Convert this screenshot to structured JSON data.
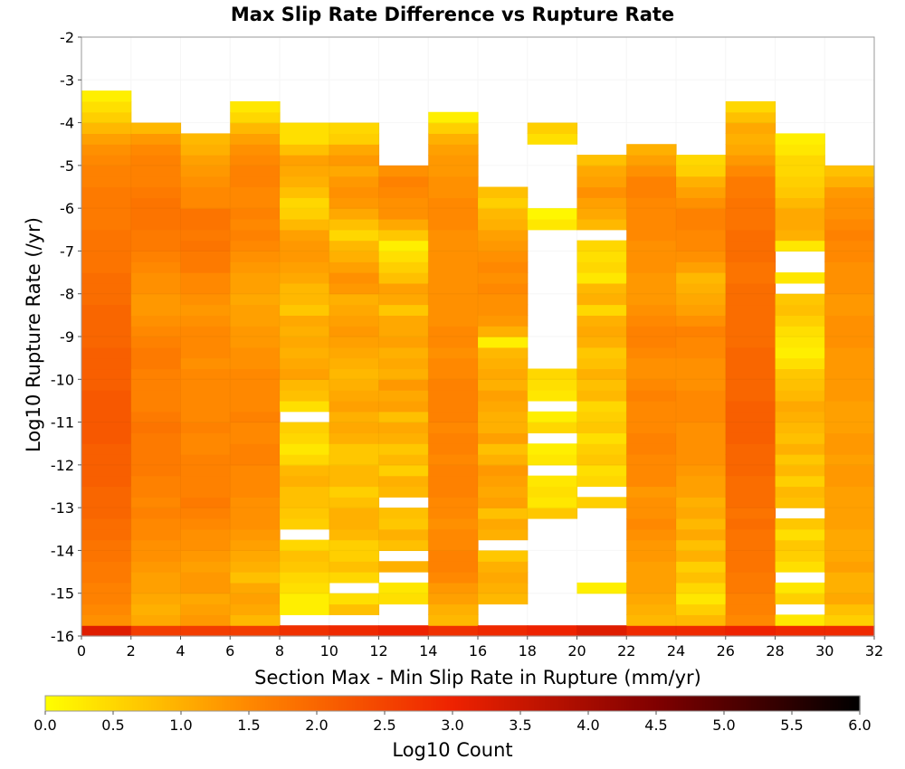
{
  "chart_data": {
    "type": "heatmap",
    "title": "Max Slip Rate Difference vs Rupture Rate",
    "xlabel": "Section Max - Min Slip Rate in Rupture (mm/yr)",
    "ylabel": "Log10 Rupture Rate (/yr)",
    "xlim": [
      0,
      32
    ],
    "ylim": [
      -16,
      -2
    ],
    "x_ticks": [
      "0",
      "2",
      "4",
      "6",
      "8",
      "10",
      "12",
      "14",
      "16",
      "18",
      "20",
      "22",
      "24",
      "26",
      "28",
      "30",
      "32"
    ],
    "y_ticks": [
      "-2",
      "-3",
      "-4",
      "-5",
      "-6",
      "-7",
      "-8",
      "-9",
      "-10",
      "-11",
      "-12",
      "-13",
      "-14",
      "-15",
      "-16"
    ],
    "x_bin_width": 2,
    "y_bin_width": 0.25,
    "colorbar": {
      "label": "Log10 Count",
      "range": [
        0,
        6
      ],
      "ticks": [
        "0.0",
        "0.5",
        "1.0",
        "1.5",
        "2.0",
        "2.5",
        "3.0",
        "3.5",
        "4.0",
        "4.5",
        "5.0",
        "5.5",
        "6.0"
      ],
      "colors": [
        "#ffff00",
        "#ff8800",
        "#ee2200",
        "#800000",
        "#000000"
      ]
    },
    "bin_value_note": "Each column lists Log10 Count per 0.25 Log10 rate bin, from the bin starting at -16 upward; null = empty bin",
    "columns": [
      {
        "x": 1,
        "values": [
          3.2,
          1.4,
          1.5,
          1.6,
          1.6,
          1.7,
          1.7,
          1.8,
          1.8,
          1.9,
          1.9,
          2.0,
          2.0,
          2.0,
          2.1,
          2.1,
          2.1,
          2.1,
          2.2,
          2.2,
          2.2,
          2.2,
          2.2,
          2.1,
          2.1,
          2.1,
          2.1,
          2.0,
          2.0,
          2.0,
          2.0,
          1.9,
          1.9,
          1.9,
          1.8,
          1.8,
          1.8,
          1.8,
          1.7,
          1.7,
          1.7,
          1.7,
          1.6,
          1.6,
          1.5,
          1.4,
          1.2,
          0.9,
          0.6,
          0.4,
          0.2
        ]
      },
      {
        "x": 3,
        "values": [
          2.6,
          1.1,
          1.0,
          1.1,
          1.2,
          1.2,
          1.3,
          1.4,
          1.4,
          1.5,
          1.5,
          1.6,
          1.5,
          1.6,
          1.6,
          1.7,
          1.7,
          1.7,
          1.7,
          1.8,
          1.7,
          1.6,
          1.6,
          1.6,
          1.6,
          1.7,
          1.7,
          1.6,
          1.5,
          1.4,
          1.3,
          1.3,
          1.4,
          1.4,
          1.5,
          1.6,
          1.7,
          1.7,
          1.8,
          1.8,
          1.8,
          1.7,
          1.6,
          1.6,
          1.6,
          1.5,
          1.3,
          0.9
        ]
      },
      {
        "x": 5,
        "values": [
          2.6,
          1.3,
          1.2,
          1.1,
          1.3,
          1.3,
          1.2,
          1.3,
          1.4,
          1.4,
          1.5,
          1.6,
          1.7,
          1.6,
          1.6,
          1.6,
          1.6,
          1.5,
          1.5,
          1.6,
          1.5,
          1.5,
          1.5,
          1.5,
          1.5,
          1.4,
          1.5,
          1.5,
          1.5,
          1.4,
          1.3,
          1.4,
          1.5,
          1.5,
          1.7,
          1.7,
          1.8,
          1.7,
          1.8,
          1.8,
          1.5,
          1.5,
          1.4,
          1.3,
          1.2,
          1.0,
          0.9
        ]
      },
      {
        "x": 7,
        "values": [
          2.6,
          0.9,
          1.1,
          1.2,
          1.1,
          0.8,
          1.0,
          1.1,
          1.2,
          1.3,
          1.4,
          1.4,
          1.4,
          1.5,
          1.5,
          1.5,
          1.6,
          1.6,
          1.5,
          1.5,
          1.6,
          1.5,
          1.5,
          1.5,
          1.5,
          1.4,
          1.4,
          1.3,
          1.3,
          1.2,
          1.2,
          1.1,
          1.2,
          1.2,
          1.3,
          1.4,
          1.5,
          1.6,
          1.5,
          1.6,
          1.5,
          1.5,
          1.6,
          1.6,
          1.5,
          1.4,
          1.2,
          0.9,
          0.5,
          0.3
        ]
      },
      {
        "x": 9,
        "values": [
          2.8,
          null,
          0.2,
          0.2,
          0.4,
          0.5,
          0.7,
          0.8,
          0.5,
          null,
          0.6,
          0.7,
          0.8,
          0.8,
          1.0,
          0.9,
          0.5,
          0.3,
          0.5,
          0.6,
          null,
          0.4,
          0.8,
          0.9,
          1.2,
          1.1,
          1.0,
          1.1,
          1.0,
          1.1,
          0.7,
          0.9,
          0.9,
          1.1,
          1.2,
          1.3,
          1.3,
          1.2,
          0.9,
          0.6,
          0.5,
          0.8,
          1.0,
          1.1,
          1.2,
          0.8,
          0.4,
          0.4
        ]
      },
      {
        "x": 11,
        "values": [
          2.9,
          null,
          0.8,
          0.4,
          null,
          0.5,
          0.8,
          0.6,
          0.6,
          0.9,
          1.0,
          1.0,
          0.8,
          0.6,
          0.9,
          0.9,
          0.7,
          0.7,
          1.0,
          1.1,
          1.0,
          1.2,
          1.1,
          1.0,
          0.9,
          1.0,
          1.1,
          1.2,
          1.3,
          1.2,
          1.1,
          1.0,
          1.3,
          1.4,
          1.2,
          1.0,
          0.9,
          0.5,
          0.8,
          1.1,
          1.3,
          1.4,
          1.3,
          1.1,
          1.3,
          1.1,
          0.6,
          0.5
        ]
      },
      {
        "x": 13,
        "values": [
          3.0,
          null,
          null,
          0.4,
          0.3,
          null,
          1.0,
          null,
          0.8,
          1.0,
          0.7,
          0.8,
          null,
          0.9,
          1.0,
          0.6,
          0.9,
          0.7,
          1.0,
          1.1,
          0.8,
          1.2,
          1.1,
          1.3,
          1.0,
          1.1,
          1.0,
          1.2,
          1.1,
          1.1,
          0.7,
          1.1,
          1.2,
          0.8,
          0.6,
          0.4,
          0.2,
          0.7,
          1.1,
          1.4,
          1.4,
          1.5,
          1.6,
          1.4
        ]
      },
      {
        "x": 15,
        "values": [
          2.8,
          0.9,
          1.0,
          1.2,
          1.3,
          1.5,
          1.6,
          1.6,
          1.5,
          1.5,
          1.4,
          1.5,
          1.5,
          1.6,
          1.6,
          1.6,
          1.5,
          1.6,
          1.6,
          1.5,
          1.6,
          1.6,
          1.6,
          1.6,
          1.5,
          1.5,
          1.4,
          1.5,
          1.5,
          1.4,
          1.4,
          1.4,
          1.4,
          1.4,
          1.4,
          1.4,
          1.4,
          1.4,
          1.5,
          1.5,
          1.5,
          1.4,
          1.4,
          1.3,
          1.3,
          1.2,
          1.0,
          0.6,
          0.2
        ]
      },
      {
        "x": 17,
        "values": [
          2.9,
          null,
          null,
          0.9,
          1.0,
          1.1,
          1.0,
          0.7,
          null,
          1.0,
          1.1,
          0.8,
          1.2,
          1.1,
          1.2,
          1.3,
          1.0,
          0.8,
          1.2,
          1.0,
          1.0,
          1.1,
          1.2,
          1.0,
          1.1,
          1.0,
          0.9,
          0.2,
          1.0,
          1.3,
          1.4,
          1.4,
          1.5,
          1.4,
          1.5,
          1.4,
          1.3,
          1.2,
          1.0,
          0.9,
          0.6,
          0.8
        ]
      },
      {
        "x": 19,
        "values": [
          3.0,
          null,
          null,
          null,
          null,
          null,
          null,
          null,
          null,
          null,
          null,
          0.7,
          0.3,
          0.4,
          0.3,
          null,
          0.3,
          0.2,
          null,
          0.5,
          0.2,
          null,
          0.3,
          0.4,
          0.5,
          null,
          null,
          null,
          null,
          null,
          null,
          null,
          null,
          null,
          null,
          null,
          null,
          null,
          0.3,
          0.1,
          null,
          null,
          null,
          null,
          null,
          null,
          0.4,
          0.6
        ]
      },
      {
        "x": 21,
        "values": [
          3.2,
          null,
          null,
          null,
          0.2,
          null,
          null,
          null,
          null,
          null,
          null,
          null,
          0.6,
          null,
          0.5,
          0.4,
          0.7,
          0.6,
          0.4,
          0.7,
          0.6,
          0.5,
          0.9,
          0.8,
          1.0,
          0.8,
          0.7,
          1.0,
          1.1,
          1.0,
          0.5,
          1.0,
          0.9,
          0.3,
          0.5,
          0.4,
          0.5,
          null,
          0.9,
          1.1,
          1.2,
          1.4,
          1.2,
          1.1,
          0.8
        ]
      },
      {
        "x": 23,
        "values": [
          2.9,
          0.9,
          1.0,
          1.1,
          1.2,
          1.2,
          1.2,
          1.3,
          1.3,
          1.4,
          1.5,
          1.4,
          1.4,
          1.3,
          1.5,
          1.5,
          1.5,
          1.6,
          1.6,
          1.5,
          1.5,
          1.5,
          1.6,
          1.5,
          1.4,
          1.4,
          1.5,
          1.6,
          1.6,
          1.5,
          1.4,
          1.3,
          1.3,
          1.3,
          1.4,
          1.4,
          1.4,
          1.5,
          1.5,
          1.5,
          1.5,
          1.6,
          1.6,
          1.4,
          1.2,
          1.0
        ]
      },
      {
        "x": 25,
        "values": [
          2.9,
          0.9,
          0.6,
          0.3,
          0.5,
          0.8,
          0.6,
          1.0,
          0.8,
          1.1,
          0.9,
          1.1,
          1.0,
          1.2,
          1.2,
          1.3,
          1.4,
          1.4,
          1.4,
          1.4,
          1.5,
          1.5,
          1.5,
          1.4,
          1.4,
          1.4,
          1.5,
          1.5,
          1.6,
          1.4,
          1.2,
          1.1,
          1.0,
          0.9,
          1.2,
          1.4,
          1.5,
          1.5,
          1.6,
          1.6,
          1.4,
          1.2,
          1.0,
          0.6,
          0.5
        ]
      },
      {
        "x": 27,
        "values": [
          3.0,
          1.5,
          1.6,
          1.6,
          1.7,
          1.7,
          1.8,
          1.8,
          1.8,
          1.8,
          1.9,
          1.8,
          1.9,
          1.9,
          1.9,
          2.0,
          2.0,
          2.0,
          2.1,
          2.1,
          2.1,
          2.1,
          2.0,
          2.0,
          2.0,
          2.0,
          2.0,
          1.9,
          1.9,
          1.9,
          1.9,
          1.9,
          1.9,
          1.8,
          1.8,
          1.9,
          1.9,
          1.9,
          1.8,
          1.8,
          1.8,
          1.7,
          1.7,
          1.5,
          1.3,
          1.1,
          1.0,
          1.1,
          0.8,
          0.5
        ]
      },
      {
        "x": 29,
        "values": [
          2.9,
          0.3,
          null,
          0.6,
          0.3,
          null,
          0.4,
          0.6,
          0.7,
          0.4,
          0.7,
          null,
          0.8,
          0.9,
          0.6,
          0.9,
          0.7,
          1.0,
          0.8,
          0.9,
          1.0,
          1.1,
          0.9,
          0.8,
          0.7,
          0.4,
          0.2,
          0.3,
          0.4,
          0.6,
          0.8,
          0.7,
          null,
          0.3,
          null,
          null,
          0.3,
          1.0,
          1.1,
          1.1,
          0.9,
          0.7,
          0.6,
          0.5,
          0.5,
          0.3,
          0.2
        ]
      },
      {
        "x": 31,
        "values": [
          2.9,
          0.6,
          0.8,
          1.1,
          1.0,
          1.0,
          1.2,
          1.1,
          1.1,
          1.1,
          1.2,
          1.2,
          1.2,
          1.2,
          1.3,
          1.3,
          1.2,
          1.3,
          1.3,
          1.2,
          1.2,
          1.2,
          1.3,
          1.3,
          1.3,
          1.3,
          1.3,
          1.4,
          1.4,
          1.4,
          1.3,
          1.3,
          1.4,
          1.4,
          1.4,
          1.5,
          1.5,
          1.6,
          1.5,
          1.4,
          1.4,
          1.3,
          1.0,
          0.8
        ]
      }
    ]
  }
}
